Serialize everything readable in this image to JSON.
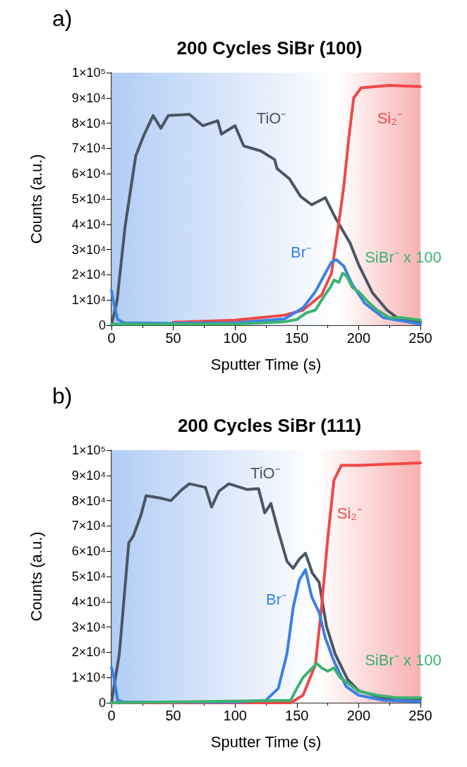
{
  "chart_data": [
    {
      "type": "line",
      "title": "200 Cycles SiBr (100)",
      "xlabel": "Sputter Time (s)",
      "ylabel": "Counts (a.u.)",
      "annotations": [
        "a)"
      ],
      "xlim": [
        0,
        250
      ],
      "xticks": [
        0,
        50,
        100,
        150,
        200,
        250
      ],
      "ylim": [
        0,
        100000
      ],
      "yticks": [
        0,
        {
          "value": 10000,
          "label": "1×10⁴"
        },
        {
          "value": 20000,
          "label": "2×10⁴"
        },
        {
          "value": 30000,
          "label": "3×10⁴"
        },
        {
          "value": 40000,
          "label": "4×10⁴"
        },
        {
          "value": 50000,
          "label": "5×10⁴"
        },
        {
          "value": 60000,
          "label": "6×10⁴"
        },
        {
          "value": 70000,
          "label": "7×10⁴"
        },
        {
          "value": 80000,
          "label": "8×10⁴"
        },
        {
          "value": 90000,
          "label": "9×10⁴"
        },
        {
          "value": 100000,
          "label": "1×10⁵"
        }
      ],
      "grid": false,
      "legend": false,
      "marker": "none",
      "line_style": "solid",
      "bands": [
        {
          "axis": "x",
          "from": 0,
          "to": 184,
          "color": "#a3c4f3"
        },
        {
          "axis": "x",
          "from": 184,
          "to": 250,
          "color": "#f7a3a3"
        }
      ],
      "series": [
        {
          "name": "TiO⁻",
          "color": "#4b5563",
          "x": [
            0,
            4.5,
            11,
            19.6,
            26,
            33.7,
            40,
            46,
            63,
            74,
            86,
            89,
            100,
            107,
            121,
            132,
            134,
            144,
            153,
            162,
            173,
            181,
            193,
            200,
            211,
            223,
            234,
            250
          ],
          "values": [
            0,
            9600,
            39000,
            67000,
            75000,
            83000,
            78000,
            83000,
            83500,
            79000,
            81000,
            75700,
            79000,
            71000,
            69000,
            65600,
            62000,
            58000,
            51000,
            47700,
            50500,
            42700,
            32600,
            24000,
            13000,
            6000,
            2000,
            1400
          ]
        },
        {
          "name": "Si₂⁻",
          "color": "#f04848",
          "x": [
            50,
            100,
            140,
            155,
            170,
            178,
            183,
            188,
            192,
            196,
            202,
            225,
            250
          ],
          "values": [
            1200,
            2000,
            4000,
            6000,
            12000,
            20600,
            37000,
            55000,
            74000,
            90000,
            94000,
            95000,
            94500
          ]
        },
        {
          "name": "Br⁻",
          "color": "#3a80e6",
          "x": [
            0,
            2,
            5,
            10,
            50,
            100,
            140,
            155,
            165,
            172,
            178,
            182,
            188,
            195,
            205,
            220,
            250
          ],
          "values": [
            13700,
            8700,
            2300,
            1000,
            800,
            1000,
            2500,
            6900,
            13300,
            19700,
            25000,
            26000,
            23400,
            16000,
            8700,
            3000,
            500
          ]
        },
        {
          "name": "SiBr⁻ x 100",
          "color": "#3cb371",
          "x": [
            0,
            100,
            140,
            150,
            158,
            165,
            172,
            177,
            180,
            184,
            187,
            190,
            195,
            200,
            207,
            215,
            225,
            235,
            250
          ],
          "values": [
            500,
            500,
            1400,
            2300,
            5000,
            6000,
            11500,
            15000,
            17900,
            17000,
            20600,
            19700,
            15000,
            13300,
            9600,
            6000,
            3000,
            3000,
            2000
          ]
        }
      ]
    },
    {
      "type": "line",
      "title": "200 Cycles SiBr (111)",
      "xlabel": "Sputter Time (s)",
      "ylabel": "Counts (a.u.)",
      "annotations": [
        "b)"
      ],
      "xlim": [
        0,
        250
      ],
      "xticks": [
        0,
        50,
        100,
        150,
        200,
        250
      ],
      "ylim": [
        0,
        100000
      ],
      "yticks": [
        0,
        {
          "value": 10000,
          "label": "1×10⁴"
        },
        {
          "value": 20000,
          "label": "2×10⁴"
        },
        {
          "value": 30000,
          "label": "3×10⁴"
        },
        {
          "value": 40000,
          "label": "4×10⁴"
        },
        {
          "value": 50000,
          "label": "5×10⁴"
        },
        {
          "value": 60000,
          "label": "6×10⁴"
        },
        {
          "value": 70000,
          "label": "7×10⁴"
        },
        {
          "value": 80000,
          "label": "8×10⁴"
        },
        {
          "value": 90000,
          "label": "9×10⁴"
        },
        {
          "value": 100000,
          "label": "1×10⁵"
        }
      ],
      "grid": false,
      "legend": false,
      "marker": "none",
      "line_style": "solid",
      "bands": [
        {
          "axis": "x",
          "from": 0,
          "to": 167,
          "color": "#a3c4f3"
        },
        {
          "axis": "x",
          "from": 167,
          "to": 250,
          "color": "#f7a3a3"
        }
      ],
      "series": [
        {
          "name": "TiO⁻",
          "color": "#4b5563",
          "x": [
            0,
            6.4,
            14,
            17.7,
            24,
            28,
            40,
            48,
            57,
            63,
            76,
            81,
            87,
            95,
            110,
            119,
            124,
            129,
            135,
            142,
            147,
            152,
            157,
            162.5,
            168,
            174,
            181,
            191,
            200,
            219,
            250
          ],
          "values": [
            0,
            19400,
            63300,
            66000,
            74500,
            82000,
            81000,
            80000,
            84400,
            86700,
            85300,
            77500,
            83800,
            86700,
            84400,
            84800,
            75200,
            78900,
            67900,
            56000,
            53200,
            56900,
            59200,
            51400,
            47700,
            30300,
            19300,
            9300,
            4800,
            2000,
            1500
          ]
        },
        {
          "name": "Si₂⁻",
          "color": "#f04848",
          "x": [
            0,
            145,
            155,
            165,
            170,
            175,
            180,
            186,
            200,
            250
          ],
          "values": [
            0,
            0,
            3000,
            15000,
            38000,
            65000,
            88000,
            94000,
            94000,
            95000
          ]
        },
        {
          "name": "Br⁻",
          "color": "#3a80e6",
          "x": [
            0,
            2,
            5,
            10,
            100,
            125,
            135,
            142,
            147,
            152,
            157,
            162,
            168,
            173,
            180,
            190,
            200,
            220,
            250
          ],
          "values": [
            14000,
            10000,
            1000,
            300,
            300,
            1000,
            5700,
            19400,
            37600,
            48600,
            52700,
            42000,
            35800,
            25700,
            16500,
            6400,
            3000,
            1000,
            500
          ]
        },
        {
          "name": "SiBr⁻ x 100",
          "color": "#3cb371",
          "x": [
            0,
            145,
            150,
            155,
            160,
            166,
            170,
            175,
            180,
            185,
            192,
            200,
            215,
            230,
            250
          ],
          "values": [
            0,
            1000,
            5700,
            10000,
            12500,
            15600,
            13800,
            12500,
            13800,
            10000,
            7500,
            4600,
            3000,
            2000,
            2000
          ]
        }
      ]
    }
  ]
}
